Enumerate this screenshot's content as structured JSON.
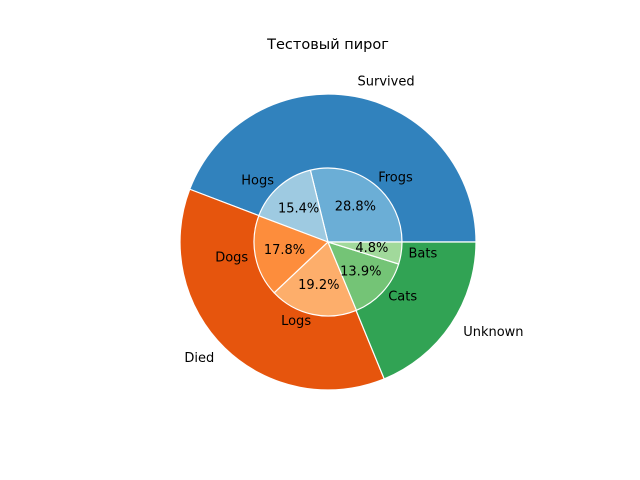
{
  "chart_data": {
    "type": "pie",
    "title": "Тестовый пирог",
    "start_angle": 0,
    "direction": "counterclockwise",
    "outer_ring": {
      "categories": [
        "Survived",
        "Died",
        "Unknown"
      ],
      "values": [
        44.2,
        37.0,
        18.8
      ],
      "colors": [
        "#3182bd",
        "#e6550d",
        "#31a354"
      ]
    },
    "inner_ring": {
      "categories": [
        "Frogs",
        "Hogs",
        "Dogs",
        "Logs",
        "Cats",
        "Bats"
      ],
      "values": [
        28.8,
        15.4,
        17.8,
        19.2,
        13.9,
        4.8
      ],
      "percent_labels": [
        "28.8%",
        "15.4%",
        "17.8%",
        "19.2%",
        "13.9%",
        "4.8%"
      ],
      "colors": [
        "#6baed6",
        "#9ecae1",
        "#fd8d3c",
        "#fdae6b",
        "#74c476",
        "#a1d99b"
      ]
    }
  }
}
